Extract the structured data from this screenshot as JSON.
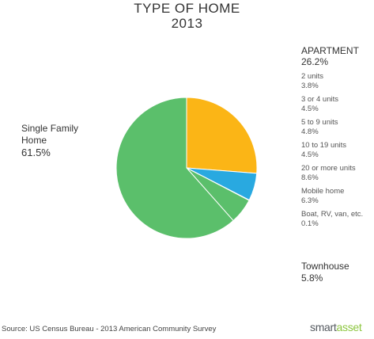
{
  "chart_data": {
    "type": "pie",
    "title": "TYPE OF HOME",
    "subtitle": "2013",
    "slices": [
      {
        "name": "APARTMENT",
        "value": 26.2,
        "label": "26.2%",
        "color": "#fbb516"
      },
      {
        "name": "Mobile home",
        "value": 6.3,
        "label": "6.3%",
        "color": "#29a9e0"
      },
      {
        "name": "Boat, RV, van, etc.",
        "value": 0.1,
        "label": "0.1%",
        "color": "#29a9e0"
      },
      {
        "name": "Townhouse",
        "value": 5.8,
        "label": "5.8%",
        "color": "#5bbf6b"
      },
      {
        "name": "Single Family Home",
        "value": 61.5,
        "label": "61.5%",
        "color": "#5bbf6b"
      }
    ],
    "apartment_breakdown": [
      {
        "name": "2 units",
        "value": "3.8%"
      },
      {
        "name": "3 or 4 units",
        "value": "4.5%"
      },
      {
        "name": "5 to 9 units",
        "value": "4.8%"
      },
      {
        "name": "10 to 19 units",
        "value": "4.5%"
      },
      {
        "name": "20 or more units",
        "value": "8.6%"
      }
    ],
    "legend": "none"
  },
  "labels": {
    "single_family_line1": "Single Family",
    "single_family_line2": "Home",
    "single_family_pct": "61.5%",
    "apartment": "APARTMENT",
    "apartment_pct": "26.2%",
    "mobile_home": "Mobile home",
    "mobile_home_pct": "6.3%",
    "boat": "Boat, RV, van, etc.",
    "boat_pct": "0.1%",
    "townhouse": "Townhouse",
    "townhouse_pct": "5.8%"
  },
  "footer": {
    "source": "Source: US Census Bureau - 2013 American Community Survey",
    "brand_part1": "smart",
    "brand_part2": "asset"
  },
  "colors": {
    "apartment": "#fbb516",
    "mobile": "#29a9e0",
    "single_family": "#5bbf6b"
  }
}
